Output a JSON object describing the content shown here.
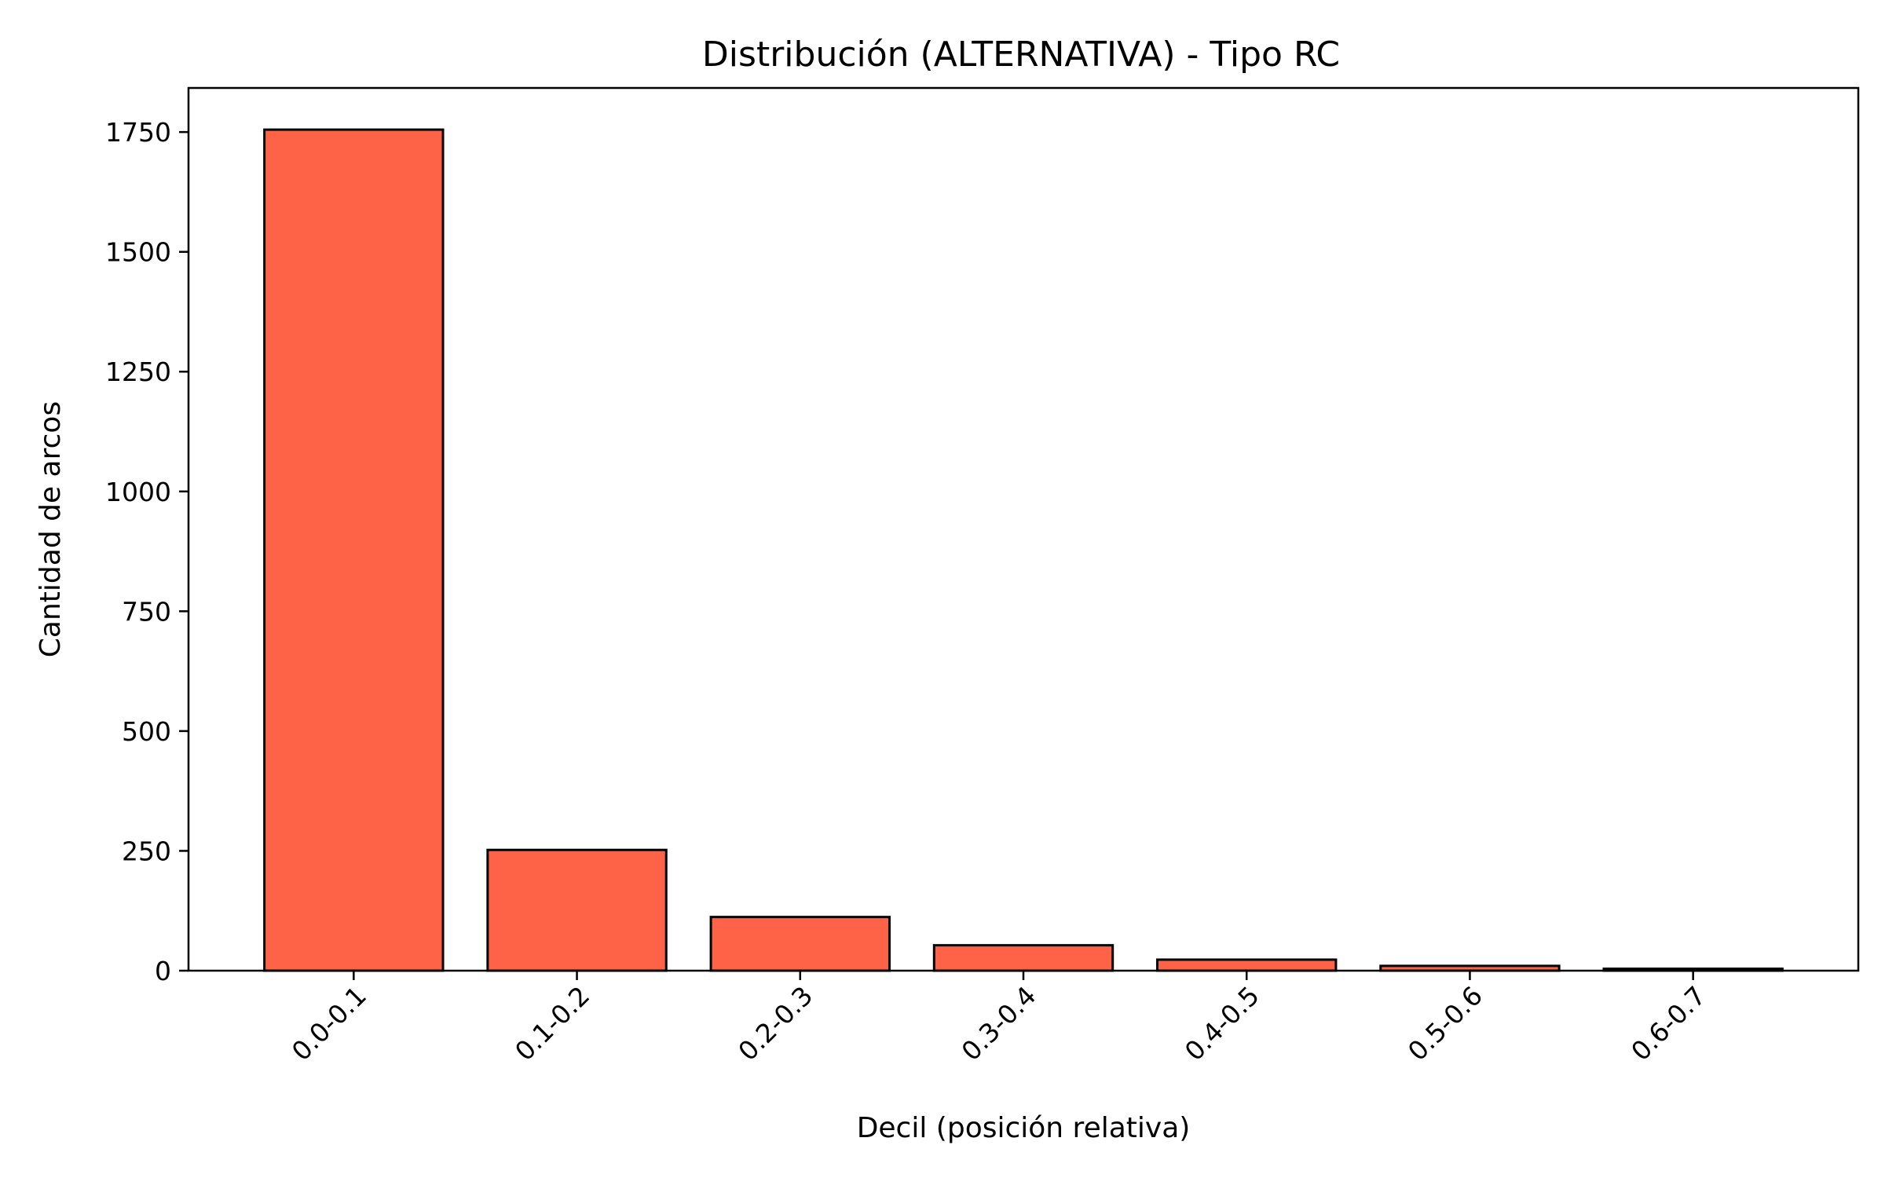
{
  "chart_data": {
    "type": "bar",
    "title": "Distribución (ALTERNATIVA) - Tipo RC",
    "xlabel": "Decil (posición relativa)",
    "ylabel": "Cantidad de arcos",
    "categories": [
      "0.0-0.1",
      "0.1-0.2",
      "0.2-0.3",
      "0.3-0.4",
      "0.4-0.5",
      "0.5-0.6",
      "0.6-0.7"
    ],
    "values": [
      1755,
      252,
      112,
      53,
      23,
      10,
      4
    ],
    "ylim": [
      0,
      1842
    ],
    "yticks": [
      0,
      250,
      500,
      750,
      1000,
      1250,
      1500,
      1750
    ],
    "ytick_labels": [
      "0",
      "250",
      "500",
      "750",
      "1000",
      "1250",
      "1500",
      "1750"
    ],
    "grid": false,
    "colors": {
      "bar_fill": "#ff6347",
      "bar_edge": "#000000"
    }
  }
}
